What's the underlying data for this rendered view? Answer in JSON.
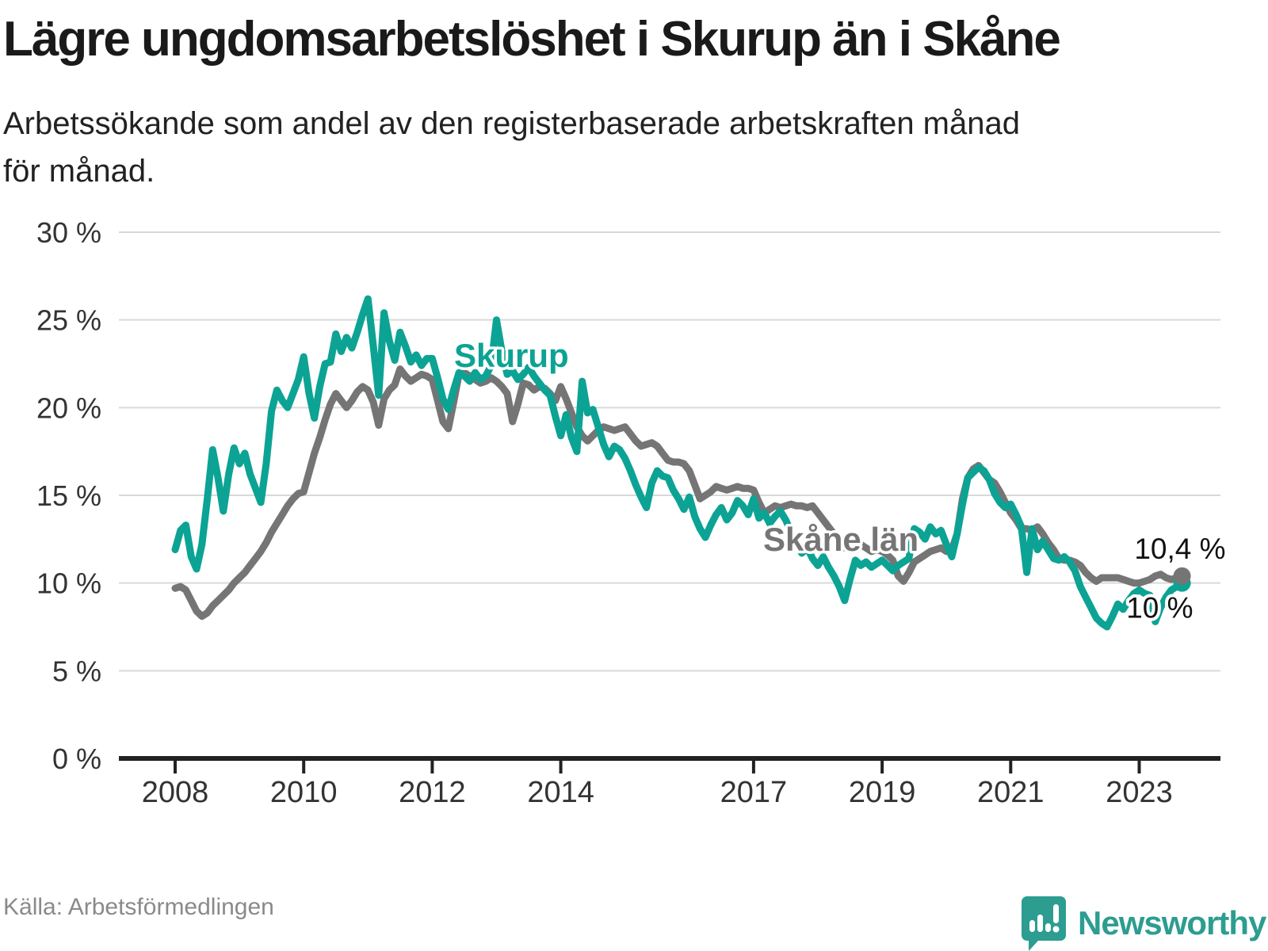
{
  "chart_data": {
    "type": "line",
    "title": "Lägre ungdomsarbetslöshet i Skurup än i Skåne",
    "subtitle_lines": [
      "Arbetssökande som andel av den registerbaserade arbetskraften månad",
      "för månad."
    ],
    "x_start_year": 2008,
    "x_frequency": "monthly",
    "x_end": "2023-09",
    "x_tick_years": [
      2008,
      2010,
      2012,
      2014,
      2017,
      2019,
      2021,
      2023
    ],
    "ylim": [
      0,
      30
    ],
    "y_ticks": [
      {
        "value": 0,
        "label": "0 %"
      },
      {
        "value": 5,
        "label": "5 %"
      },
      {
        "value": 10,
        "label": "10 %"
      },
      {
        "value": 15,
        "label": "15 %"
      },
      {
        "value": 20,
        "label": "20 %"
      },
      {
        "value": 25,
        "label": "25 %"
      },
      {
        "value": 30,
        "label": "30 %"
      }
    ],
    "grid": "horizontal",
    "legend_position": "inline-labels",
    "series": [
      {
        "name": "Skåne län",
        "color": "#757575",
        "end_label": "10,4 %",
        "values": [
          9.7,
          9.8,
          9.6,
          9.0,
          8.4,
          8.1,
          8.3,
          8.7,
          9.0,
          9.3,
          9.6,
          10.0,
          10.3,
          10.6,
          11.0,
          11.4,
          11.8,
          12.3,
          12.9,
          13.4,
          13.9,
          14.4,
          14.8,
          15.1,
          15.2,
          16.3,
          17.4,
          18.3,
          19.3,
          20.2,
          20.8,
          20.4,
          20.0,
          20.4,
          20.9,
          21.2,
          21.0,
          20.3,
          19.0,
          20.5,
          21.0,
          21.3,
          22.2,
          21.8,
          21.5,
          21.7,
          21.9,
          21.8,
          21.6,
          20.4,
          19.2,
          18.8,
          20.3,
          21.9,
          22.0,
          21.8,
          21.6,
          21.4,
          21.5,
          21.7,
          21.5,
          21.2,
          20.8,
          19.2,
          20.2,
          21.4,
          21.3,
          21.0,
          21.2,
          21.1,
          20.8,
          20.4,
          21.2,
          20.5,
          19.7,
          18.9,
          18.4,
          18.1,
          18.4,
          18.7,
          18.9,
          18.8,
          18.7,
          18.8,
          18.9,
          18.5,
          18.1,
          17.8,
          17.9,
          18.0,
          17.8,
          17.4,
          17.0,
          16.9,
          16.9,
          16.8,
          16.4,
          15.6,
          14.8,
          15.0,
          15.2,
          15.5,
          15.4,
          15.3,
          15.4,
          15.5,
          15.4,
          15.4,
          15.3,
          14.6,
          14.0,
          14.2,
          14.4,
          14.3,
          14.4,
          14.5,
          14.4,
          14.4,
          14.3,
          14.4,
          14.0,
          13.6,
          13.2,
          12.8,
          12.4,
          12.0,
          12.2,
          12.4,
          12.2,
          12.0,
          11.8,
          11.9,
          11.8,
          11.6,
          11.3,
          10.4,
          10.1,
          10.6,
          11.2,
          11.4,
          11.6,
          11.8,
          11.9,
          12.0,
          11.8,
          11.9,
          12.8,
          14.8,
          16.0,
          16.5,
          16.7,
          16.3,
          15.9,
          15.7,
          15.2,
          14.6,
          14.0,
          13.6,
          13.1,
          13.1,
          13.0,
          13.2,
          12.8,
          12.3,
          11.9,
          11.4,
          11.3,
          11.3,
          11.2,
          11.0,
          10.6,
          10.3,
          10.1,
          10.3,
          10.3,
          10.3,
          10.3,
          10.2,
          10.1,
          10.0,
          10.0,
          10.1,
          10.2,
          10.4,
          10.5,
          10.3,
          10.2,
          10.3,
          10.4
        ]
      },
      {
        "name": "Skurup",
        "color": "#0ca394",
        "end_label": "10 %",
        "values": [
          11.9,
          13.0,
          13.3,
          11.5,
          10.8,
          12.2,
          14.8,
          17.6,
          16.0,
          14.1,
          16.2,
          17.7,
          16.8,
          17.4,
          16.2,
          15.4,
          14.6,
          16.8,
          19.8,
          21.0,
          20.4,
          20.0,
          20.8,
          21.6,
          22.9,
          20.8,
          19.4,
          21.2,
          22.5,
          22.6,
          24.2,
          23.2,
          24.0,
          23.4,
          24.3,
          25.3,
          26.2,
          23.5,
          20.7,
          25.4,
          23.8,
          22.7,
          24.3,
          23.5,
          22.6,
          23.0,
          22.4,
          22.8,
          22.8,
          21.7,
          20.5,
          19.9,
          21.0,
          22.0,
          21.8,
          21.5,
          22.0,
          21.6,
          21.8,
          22.4,
          25.0,
          23.2,
          21.9,
          22.1,
          21.6,
          21.9,
          22.3,
          21.8,
          21.4,
          21.0,
          20.7,
          19.5,
          18.4,
          19.6,
          18.3,
          17.5,
          21.5,
          19.7,
          19.9,
          18.9,
          17.9,
          17.2,
          17.8,
          17.6,
          17.1,
          16.4,
          15.6,
          14.9,
          14.3,
          15.7,
          16.4,
          16.1,
          16.0,
          15.3,
          14.8,
          14.2,
          14.9,
          13.8,
          13.1,
          12.6,
          13.3,
          13.9,
          14.3,
          13.6,
          14.0,
          14.7,
          14.4,
          13.9,
          14.8,
          13.7,
          14.0,
          13.4,
          13.8,
          14.1,
          13.6,
          12.9,
          12.2,
          11.7,
          12.0,
          11.4,
          11.0,
          11.5,
          10.9,
          10.4,
          9.8,
          9.0,
          10.2,
          11.3,
          11.0,
          11.2,
          10.9,
          11.1,
          11.3,
          11.0,
          10.7,
          11.0,
          11.2,
          11.4,
          13.1,
          12.9,
          12.5,
          13.2,
          12.8,
          13.0,
          12.2,
          11.5,
          12.8,
          14.5,
          16.0,
          16.3,
          16.6,
          16.4,
          15.9,
          15.1,
          14.6,
          14.3,
          14.5,
          13.9,
          13.2,
          10.6,
          13.1,
          11.9,
          12.4,
          11.9,
          11.4,
          11.3,
          11.5,
          11.2,
          10.7,
          9.8,
          9.2,
          8.6,
          8.0,
          7.7,
          7.5,
          8.1,
          8.8,
          8.5,
          9.0,
          9.4,
          9.6,
          9.4,
          9.3,
          7.8,
          8.6,
          9.2,
          9.6,
          9.8,
          10.0
        ]
      }
    ],
    "inline_series_labels": [
      {
        "text": "Skurup",
        "color": "#0ca394"
      },
      {
        "text": "Skåne län",
        "color": "#757575"
      }
    ]
  },
  "footer": {
    "source": "Källa: Arbetsförmedlingen",
    "logo_text": "Newsworthy"
  }
}
